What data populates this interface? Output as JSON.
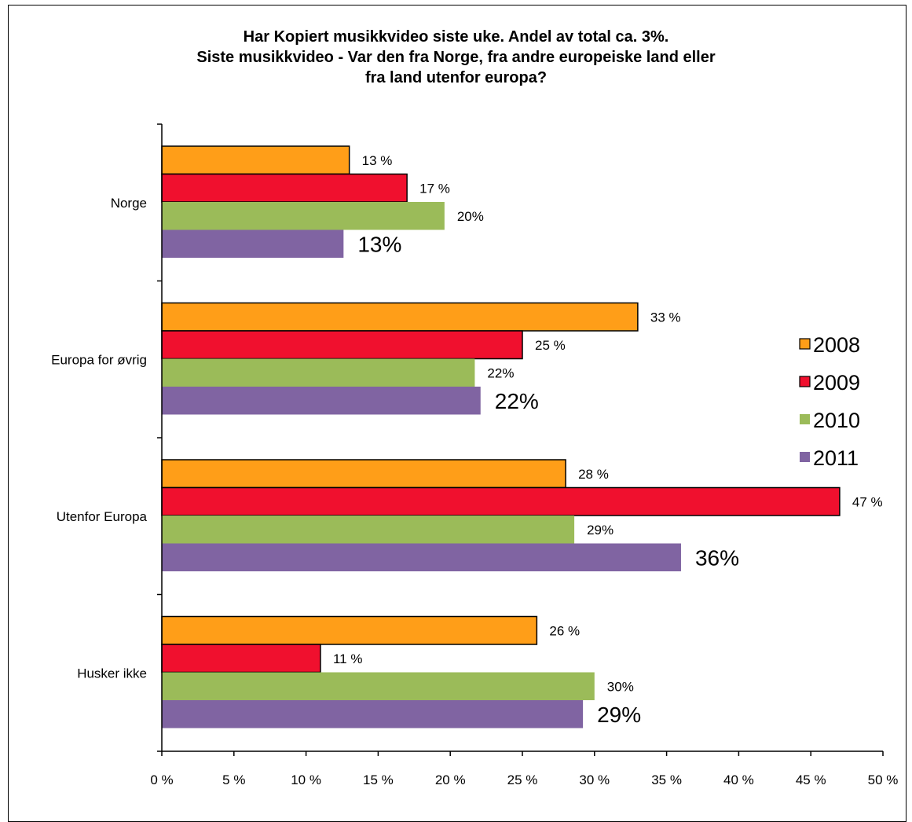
{
  "chart_data": {
    "type": "bar",
    "orientation": "horizontal",
    "title_lines": [
      "Har Kopiert musikkvideo siste uke. Andel av total ca. 3%.",
      "Siste musikkvideo - Var den fra Norge, fra andre europeiske land eller",
      "fra land utenfor europa?"
    ],
    "categories": [
      "Norge",
      "Europa for øvrig",
      "Utenfor Europa",
      "Husker ikke"
    ],
    "series": [
      {
        "name": "2008",
        "color": "#FF9E18",
        "outlined": true,
        "values": [
          13,
          33,
          28,
          26
        ],
        "labels": [
          "13 %",
          "33 %",
          "28 %",
          "26 %"
        ],
        "label_style": "small"
      },
      {
        "name": "2009",
        "color": "#F0102E",
        "outlined": true,
        "values": [
          17,
          25,
          47,
          11
        ],
        "labels": [
          "17 %",
          "25 %",
          "47 %",
          "11 %"
        ],
        "label_style": "small"
      },
      {
        "name": "2010",
        "color": "#9BBB59",
        "outlined": false,
        "values": [
          19.6,
          21.7,
          28.6,
          30
        ],
        "labels": [
          "20%",
          "22%",
          "29%",
          "30%"
        ],
        "label_style": "small"
      },
      {
        "name": "2011",
        "color": "#8064A2",
        "outlined": false,
        "values": [
          12.6,
          22.1,
          36,
          29.2
        ],
        "labels": [
          "13%",
          "22%",
          "36%",
          "29%"
        ],
        "label_style": "large"
      }
    ],
    "xlim": [
      0,
      50
    ],
    "x_ticks": [
      0,
      5,
      10,
      15,
      20,
      25,
      30,
      35,
      40,
      45,
      50
    ],
    "x_tick_labels": [
      "0 %",
      "5 %",
      "10 %",
      "15 %",
      "20 %",
      "25 %",
      "30 %",
      "35 %",
      "40 %",
      "45 %",
      "50 %"
    ],
    "grid": false,
    "legend_position": "right"
  }
}
